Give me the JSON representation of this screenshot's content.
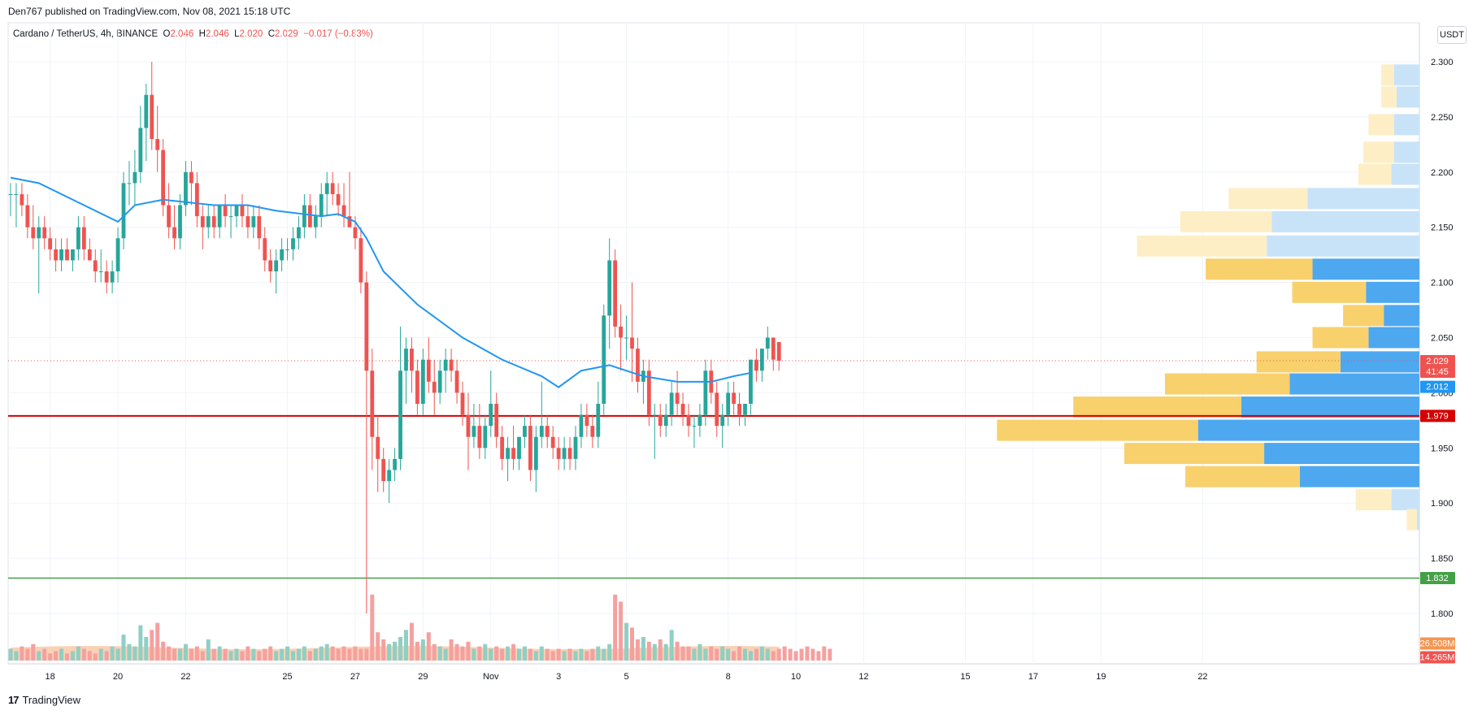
{
  "header": {
    "published": "Den767 published on TradingView.com, Nov 08, 2021 15:18 UTC"
  },
  "symbol": {
    "name": "Cardano / TetherUS, 4h, BINANCE",
    "o_label": "O",
    "o_value": "2.046",
    "h_label": "H",
    "h_value": "2.046",
    "l_label": "L",
    "l_value": "2.020",
    "c_label": "C",
    "c_value": "2.029",
    "change": "−0.017 (−0.83%)"
  },
  "currency_button": "USDT",
  "footer": {
    "brand": "TradingView",
    "mark": "17"
  },
  "chart_data": {
    "type": "candlestick",
    "ylim": [
      1.775,
      2.325
    ],
    "y_ticks": [
      "2.300",
      "2.250",
      "2.200",
      "2.150",
      "2.100",
      "2.050",
      "2.000",
      "1.950",
      "1.900",
      "1.850",
      "1.800"
    ],
    "x_ticks": [
      {
        "label": "18",
        "bar": 7
      },
      {
        "label": "20",
        "bar": 19
      },
      {
        "label": "22",
        "bar": 31
      },
      {
        "label": "25",
        "bar": 49
      },
      {
        "label": "27",
        "bar": 61
      },
      {
        "label": "29",
        "bar": 73
      },
      {
        "label": "Nov",
        "bar": 85
      },
      {
        "label": "3",
        "bar": 97
      },
      {
        "label": "5",
        "bar": 109
      },
      {
        "label": "8",
        "bar": 127
      },
      {
        "label": "10",
        "bar": 139
      },
      {
        "label": "12",
        "bar": 151
      },
      {
        "label": "15",
        "bar": 169
      },
      {
        "label": "17",
        "bar": 181
      },
      {
        "label": "19",
        "bar": 193
      },
      {
        "label": "22",
        "bar": 211
      }
    ],
    "candles": [
      [
        2.18,
        2.19,
        2.16,
        2.18
      ],
      [
        2.18,
        2.19,
        2.15,
        2.18
      ],
      [
        2.18,
        2.19,
        2.16,
        2.17
      ],
      [
        2.17,
        2.18,
        2.14,
        2.15
      ],
      [
        2.15,
        2.17,
        2.13,
        2.14
      ],
      [
        2.14,
        2.16,
        2.09,
        2.15
      ],
      [
        2.15,
        2.16,
        2.13,
        2.14
      ],
      [
        2.14,
        2.15,
        2.12,
        2.13
      ],
      [
        2.13,
        2.14,
        2.11,
        2.12
      ],
      [
        2.12,
        2.14,
        2.11,
        2.13
      ],
      [
        2.13,
        2.14,
        2.12,
        2.12
      ],
      [
        2.12,
        2.13,
        2.11,
        2.13
      ],
      [
        2.13,
        2.16,
        2.12,
        2.15
      ],
      [
        2.15,
        2.16,
        2.12,
        2.13
      ],
      [
        2.13,
        2.14,
        2.12,
        2.12
      ],
      [
        2.12,
        2.13,
        2.1,
        2.11
      ],
      [
        2.11,
        2.13,
        2.1,
        2.11
      ],
      [
        2.11,
        2.12,
        2.09,
        2.1
      ],
      [
        2.1,
        2.12,
        2.09,
        2.11
      ],
      [
        2.11,
        2.15,
        2.1,
        2.14
      ],
      [
        2.14,
        2.2,
        2.13,
        2.19
      ],
      [
        2.19,
        2.21,
        2.17,
        2.19
      ],
      [
        2.19,
        2.22,
        2.17,
        2.2
      ],
      [
        2.2,
        2.26,
        2.19,
        2.24
      ],
      [
        2.24,
        2.28,
        2.21,
        2.27
      ],
      [
        2.27,
        2.3,
        2.22,
        2.23
      ],
      [
        2.23,
        2.26,
        2.2,
        2.22
      ],
      [
        2.22,
        2.23,
        2.16,
        2.17
      ],
      [
        2.17,
        2.19,
        2.14,
        2.15
      ],
      [
        2.15,
        2.17,
        2.13,
        2.14
      ],
      [
        2.14,
        2.18,
        2.13,
        2.17
      ],
      [
        2.17,
        2.21,
        2.16,
        2.2
      ],
      [
        2.2,
        2.21,
        2.17,
        2.19
      ],
      [
        2.19,
        2.2,
        2.15,
        2.16
      ],
      [
        2.16,
        2.17,
        2.13,
        2.15
      ],
      [
        2.15,
        2.17,
        2.14,
        2.16
      ],
      [
        2.16,
        2.17,
        2.14,
        2.15
      ],
      [
        2.15,
        2.17,
        2.14,
        2.17
      ],
      [
        2.17,
        2.18,
        2.15,
        2.16
      ],
      [
        2.16,
        2.17,
        2.14,
        2.16
      ],
      [
        2.16,
        2.17,
        2.15,
        2.17
      ],
      [
        2.17,
        2.18,
        2.15,
        2.16
      ],
      [
        2.16,
        2.17,
        2.14,
        2.15
      ],
      [
        2.15,
        2.17,
        2.14,
        2.16
      ],
      [
        2.16,
        2.17,
        2.13,
        2.14
      ],
      [
        2.14,
        2.15,
        2.11,
        2.12
      ],
      [
        2.12,
        2.13,
        2.1,
        2.11
      ],
      [
        2.11,
        2.13,
        2.09,
        2.12
      ],
      [
        2.12,
        2.14,
        2.11,
        2.13
      ],
      [
        2.13,
        2.14,
        2.12,
        2.13
      ],
      [
        2.13,
        2.15,
        2.12,
        2.14
      ],
      [
        2.14,
        2.16,
        2.13,
        2.15
      ],
      [
        2.15,
        2.18,
        2.14,
        2.17
      ],
      [
        2.17,
        2.18,
        2.15,
        2.15
      ],
      [
        2.15,
        2.17,
        2.14,
        2.16
      ],
      [
        2.16,
        2.19,
        2.15,
        2.18
      ],
      [
        2.18,
        2.2,
        2.16,
        2.19
      ],
      [
        2.19,
        2.2,
        2.17,
        2.18
      ],
      [
        2.18,
        2.19,
        2.16,
        2.17
      ],
      [
        2.17,
        2.19,
        2.15,
        2.16
      ],
      [
        2.16,
        2.2,
        2.15,
        2.15
      ],
      [
        2.15,
        2.16,
        2.13,
        2.14
      ],
      [
        2.14,
        2.15,
        2.09,
        2.1
      ],
      [
        2.1,
        2.11,
        1.8,
        2.02
      ],
      [
        2.02,
        2.04,
        1.93,
        1.96
      ],
      [
        1.96,
        1.98,
        1.91,
        1.94
      ],
      [
        1.94,
        1.95,
        1.91,
        1.92
      ],
      [
        1.92,
        1.94,
        1.9,
        1.93
      ],
      [
        1.93,
        1.95,
        1.92,
        1.94
      ],
      [
        1.94,
        2.06,
        1.93,
        2.02
      ],
      [
        2.02,
        2.05,
        1.99,
        2.04
      ],
      [
        2.04,
        2.05,
        2.0,
        2.02
      ],
      [
        2.02,
        2.03,
        1.98,
        1.99
      ],
      [
        1.99,
        2.04,
        1.98,
        2.03
      ],
      [
        2.03,
        2.05,
        2.0,
        2.01
      ],
      [
        2.01,
        2.03,
        1.98,
        2.0
      ],
      [
        2.0,
        2.03,
        1.99,
        2.02
      ],
      [
        2.02,
        2.04,
        2.0,
        2.03
      ],
      [
        2.03,
        2.04,
        2.01,
        2.02
      ],
      [
        2.02,
        2.03,
        1.99,
        2.0
      ],
      [
        2.0,
        2.01,
        1.97,
        1.98
      ],
      [
        1.98,
        2.0,
        1.93,
        1.96
      ],
      [
        1.96,
        1.99,
        1.95,
        1.97
      ],
      [
        1.97,
        1.99,
        1.94,
        1.95
      ],
      [
        1.95,
        1.98,
        1.94,
        1.97
      ],
      [
        1.97,
        2.02,
        1.96,
        1.99
      ],
      [
        1.99,
        2.0,
        1.95,
        1.96
      ],
      [
        1.96,
        1.97,
        1.93,
        1.94
      ],
      [
        1.94,
        1.96,
        1.92,
        1.95
      ],
      [
        1.95,
        1.97,
        1.93,
        1.94
      ],
      [
        1.94,
        1.96,
        1.93,
        1.96
      ],
      [
        1.96,
        1.98,
        1.95,
        1.97
      ],
      [
        1.97,
        1.98,
        1.92,
        1.93
      ],
      [
        1.93,
        1.97,
        1.91,
        1.96
      ],
      [
        1.96,
        2.01,
        1.95,
        1.97
      ],
      [
        1.97,
        1.98,
        1.95,
        1.96
      ],
      [
        1.96,
        1.97,
        1.94,
        1.95
      ],
      [
        1.95,
        1.96,
        1.93,
        1.94
      ],
      [
        1.94,
        1.96,
        1.93,
        1.95
      ],
      [
        1.95,
        1.96,
        1.93,
        1.94
      ],
      [
        1.94,
        1.97,
        1.93,
        1.96
      ],
      [
        1.96,
        1.99,
        1.95,
        1.98
      ],
      [
        1.98,
        1.99,
        1.96,
        1.97
      ],
      [
        1.97,
        1.98,
        1.95,
        1.96
      ],
      [
        1.96,
        2.01,
        1.95,
        1.99
      ],
      [
        1.99,
        2.08,
        1.98,
        2.07
      ],
      [
        2.07,
        2.14,
        2.04,
        2.12
      ],
      [
        2.12,
        2.13,
        2.05,
        2.06
      ],
      [
        2.06,
        2.08,
        2.02,
        2.05
      ],
      [
        2.05,
        2.07,
        2.03,
        2.05
      ],
      [
        2.05,
        2.1,
        2.01,
        2.04
      ],
      [
        2.04,
        2.05,
        2.0,
        2.01
      ],
      [
        2.01,
        2.03,
        1.99,
        2.02
      ],
      [
        2.02,
        2.03,
        1.97,
        1.98
      ],
      [
        1.98,
        1.99,
        1.94,
        1.98
      ],
      [
        1.98,
        1.99,
        1.96,
        1.97
      ],
      [
        1.97,
        1.99,
        1.96,
        1.98
      ],
      [
        1.98,
        2.01,
        1.97,
        2.0
      ],
      [
        2.0,
        2.02,
        1.98,
        1.99
      ],
      [
        1.99,
        2.0,
        1.97,
        1.98
      ],
      [
        1.98,
        1.99,
        1.96,
        1.97
      ],
      [
        1.97,
        1.98,
        1.95,
        1.97
      ],
      [
        1.97,
        1.99,
        1.96,
        1.98
      ],
      [
        1.98,
        2.03,
        1.97,
        2.02
      ],
      [
        2.02,
        2.03,
        1.99,
        2.0
      ],
      [
        2.0,
        2.01,
        1.96,
        1.97
      ],
      [
        1.97,
        1.99,
        1.95,
        1.98
      ],
      [
        1.98,
        2.01,
        1.97,
        2.0
      ],
      [
        2.0,
        2.01,
        1.98,
        1.99
      ],
      [
        1.99,
        2.0,
        1.97,
        1.98
      ],
      [
        1.98,
        1.99,
        1.97,
        1.99
      ],
      [
        1.99,
        2.03,
        1.98,
        2.03
      ],
      [
        2.03,
        2.04,
        2.01,
        2.02
      ],
      [
        2.02,
        2.04,
        2.01,
        2.04
      ],
      [
        2.04,
        2.06,
        2.03,
        2.05
      ],
      [
        2.05,
        2.05,
        2.02,
        2.03
      ],
      [
        2.046,
        2.046,
        2.02,
        2.029
      ]
    ],
    "volume_bars": [
      0.5,
      0.4,
      0.6,
      0.5,
      0.7,
      0.4,
      0.5,
      0.3,
      0.4,
      0.5,
      0.3,
      0.4,
      0.6,
      0.5,
      0.4,
      0.3,
      0.5,
      0.4,
      0.6,
      0.5,
      1.1,
      0.7,
      0.6,
      1.5,
      1.0,
      1.3,
      1.6,
      0.8,
      0.6,
      0.5,
      0.5,
      0.7,
      0.5,
      0.6,
      0.4,
      0.9,
      0.5,
      0.6,
      0.5,
      0.4,
      0.5,
      0.4,
      0.6,
      0.5,
      0.4,
      0.5,
      0.6,
      0.4,
      0.5,
      0.6,
      0.4,
      0.5,
      0.6,
      0.4,
      0.5,
      0.6,
      0.7,
      0.6,
      0.5,
      0.6,
      0.5,
      0.6,
      0.5,
      0.5,
      2.8,
      1.2,
      0.9,
      0.7,
      0.8,
      1.0,
      1.3,
      1.6,
      0.8,
      0.9,
      1.2,
      0.7,
      0.6,
      0.5,
      0.9,
      0.7,
      0.6,
      0.8,
      0.5,
      0.6,
      0.7,
      0.5,
      0.6,
      0.5,
      0.6,
      0.7,
      0.5,
      0.6,
      0.5,
      0.4,
      0.6,
      0.5,
      0.4,
      0.5,
      0.4,
      0.5,
      0.4,
      0.5,
      0.4,
      0.5,
      0.6,
      0.5,
      0.7,
      2.8,
      2.5,
      1.6,
      1.4,
      0.9,
      1.0,
      0.8,
      0.7,
      0.9,
      0.7,
      1.3,
      0.8,
      0.6,
      0.6,
      0.5,
      0.7,
      0.5,
      0.6,
      0.5,
      0.6,
      0.5,
      0.4,
      0.6,
      0.5,
      0.4,
      0.5,
      0.6,
      0.5,
      0.4,
      0.5,
      0.6,
      0.5,
      0.4,
      0.5,
      0.6,
      0.5,
      0.4,
      0.6,
      0.5
    ],
    "ma_curve": [
      [
        0,
        2.195
      ],
      [
        5,
        2.19
      ],
      [
        11,
        2.175
      ],
      [
        17,
        2.16
      ],
      [
        19,
        2.155
      ],
      [
        22,
        2.17
      ],
      [
        27,
        2.175
      ],
      [
        36,
        2.17
      ],
      [
        42,
        2.17
      ],
      [
        47,
        2.165
      ],
      [
        55,
        2.16
      ],
      [
        58,
        2.162
      ],
      [
        61,
        2.155
      ],
      [
        63,
        2.14
      ],
      [
        66,
        2.11
      ],
      [
        72,
        2.08
      ],
      [
        80,
        2.05
      ],
      [
        87,
        2.03
      ],
      [
        94,
        2.015
      ],
      [
        97,
        2.005
      ],
      [
        101,
        2.02
      ],
      [
        106,
        2.025
      ],
      [
        112,
        2.015
      ],
      [
        118,
        2.01
      ],
      [
        124,
        2.01
      ],
      [
        128,
        2.015
      ],
      [
        131,
        2.018
      ]
    ],
    "ma_last": "2.012",
    "price_label": "2.029",
    "countdown": "41:45",
    "resistance_line": {
      "value": 1.979,
      "label": "1.979",
      "color": "#d50000"
    },
    "support_line": {
      "value": 1.832,
      "label": "1.832",
      "color": "#43a047"
    },
    "volume_profile": [
      {
        "price": 2.288,
        "up": 0.1,
        "down": 0.05,
        "faded": true
      },
      {
        "price": 2.268,
        "up": 0.09,
        "down": 0.06,
        "faded": true
      },
      {
        "price": 2.243,
        "up": 0.1,
        "down": 0.1,
        "faded": true
      },
      {
        "price": 2.218,
        "up": 0.1,
        "down": 0.12,
        "faded": true
      },
      {
        "price": 2.198,
        "up": 0.11,
        "down": 0.13,
        "faded": true
      },
      {
        "price": 2.176,
        "up": 0.44,
        "down": 0.31,
        "faded": true
      },
      {
        "price": 2.155,
        "up": 0.58,
        "down": 0.36,
        "faded": true
      },
      {
        "price": 2.133,
        "up": 0.6,
        "down": 0.51,
        "faded": true
      },
      {
        "price": 2.112,
        "up": 0.42,
        "down": 0.42,
        "faded": false
      },
      {
        "price": 2.091,
        "up": 0.21,
        "down": 0.29,
        "faded": false
      },
      {
        "price": 2.07,
        "up": 0.14,
        "down": 0.16,
        "faded": false
      },
      {
        "price": 2.05,
        "up": 0.2,
        "down": 0.22,
        "faded": false
      },
      {
        "price": 2.028,
        "up": 0.31,
        "down": 0.33,
        "faded": false
      },
      {
        "price": 2.008,
        "up": 0.51,
        "down": 0.49,
        "faded": false
      },
      {
        "price": 1.987,
        "up": 0.7,
        "down": 0.66,
        "faded": false
      },
      {
        "price": 1.966,
        "up": 0.87,
        "down": 0.79,
        "faded": false
      },
      {
        "price": 1.945,
        "up": 0.61,
        "down": 0.55,
        "faded": false
      },
      {
        "price": 1.924,
        "up": 0.47,
        "down": 0.45,
        "faded": false
      },
      {
        "price": 1.903,
        "up": 0.11,
        "down": 0.14,
        "faded": true
      },
      {
        "price": 1.885,
        "up": 0.01,
        "down": 0.04,
        "faded": true
      }
    ],
    "volume_labels": {
      "ma_volume": "26.508M",
      "last_volume": "14.265M"
    },
    "colors": {
      "up": "#26a69a",
      "down": "#ef5350",
      "ma": "#2196f3",
      "vol_up": "#8fcfc4",
      "vol_down": "#f5a0a0",
      "vol_ma_fill": "#f9c9a8",
      "vp_up": "#4da8f0",
      "vp_down": "#f8d06c",
      "vp_up_faded": "#c8e3f8",
      "vp_down_faded": "#fdeec6",
      "price_red": "#ef5350",
      "ma_label": "#2196f3",
      "vol_ma_label": "#f7944f",
      "vol_last_label": "#ef5350",
      "grid": "#f0f3fa",
      "axis_text": "#131722"
    }
  }
}
